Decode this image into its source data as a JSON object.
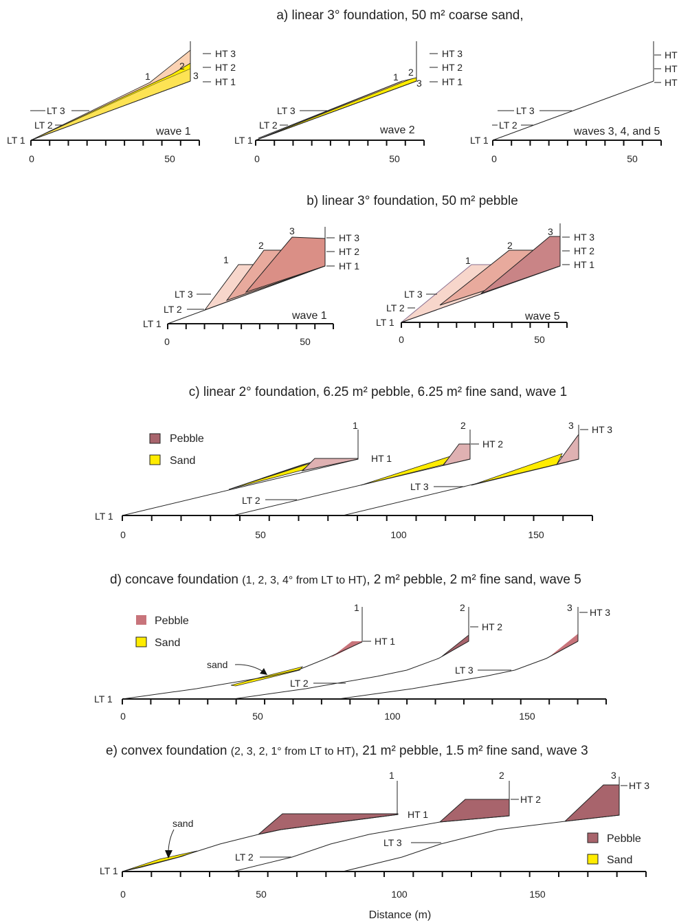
{
  "panels": {
    "a": {
      "title": "a)  linear 3° foundation, 50 m² coarse sand,",
      "sub_labels": [
        "wave 1",
        "wave 2",
        "waves 3, 4, and 5"
      ],
      "x_ticks": [
        "0",
        "50"
      ]
    },
    "b": {
      "title": "b)  linear 3° foundation, 50 m² pebble",
      "sub_labels": [
        "wave 1",
        "wave 5"
      ],
      "x_ticks": [
        "0",
        "50"
      ]
    },
    "c": {
      "title": "c)  linear 2° foundation, 6.25 m² pebble, 6.25 m² fine sand, wave 1",
      "x_ticks": [
        "0",
        "50",
        "100",
        "150"
      ],
      "legend": [
        "Pebble",
        "Sand"
      ]
    },
    "d": {
      "title_prefix": "d)  concave foundation ",
      "title_small": "(1, 2, 3, 4° from LT to HT)",
      "title_suffix": ", 2 m² pebble, 2 m² fine sand, wave 5",
      "x_ticks": [
        "0",
        "50",
        "100",
        "150"
      ],
      "legend": [
        "Pebble",
        "Sand"
      ],
      "annotation": "sand"
    },
    "e": {
      "title_prefix": "e)  convex foundation ",
      "title_small": "(2, 3, 2, 1° from LT to HT)",
      "title_suffix": ", 21 m² pebble, 1.5 m² fine sand, wave 3",
      "x_ticks": [
        "0",
        "50",
        "100",
        "150"
      ],
      "legend": [
        "Pebble",
        "Sand"
      ],
      "annotation": "sand",
      "x_axis_label": "Distance (m)"
    }
  },
  "tide_labels": {
    "lt1": "LT 1",
    "lt2": "LT 2",
    "lt3": "LT 3",
    "ht1": "HT 1",
    "ht2": "HT 2",
    "ht3": "HT 3",
    "ht": "HT",
    "n1": "1",
    "n2": "2",
    "n3": "3"
  },
  "colors": {
    "sand": "#ffec00",
    "sand_light": "#fbe3a0",
    "pebble": "#a8646c",
    "pebble_mid": "#d79990",
    "pebble_light": "#f7d6cb",
    "peach": "#fbd2b3"
  }
}
